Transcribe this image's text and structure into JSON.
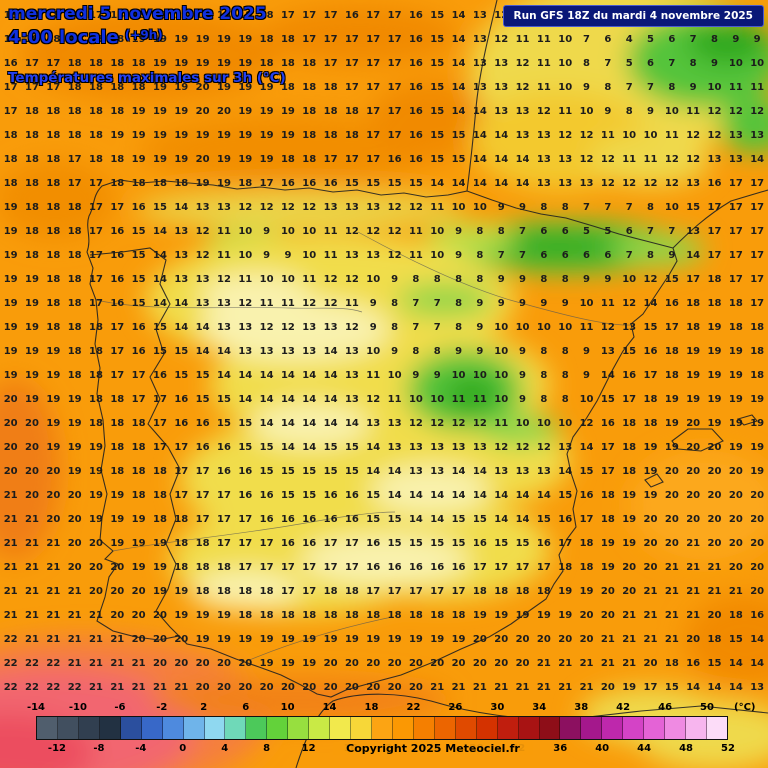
{
  "header": {
    "date_line": "mercredi 5 novembre 2025",
    "time_line": "4:00 locale",
    "time_offset": "(+9h)",
    "subtitle": "Températures maximales sur 3h (°C)",
    "run_info": "Run GFS 18Z du mardi 4 novembre 2025"
  },
  "footer": {
    "copyright": "Copyright 2025 Meteociel.fr"
  },
  "colors": {
    "header_blue": "#1030E0",
    "subtitle_blue": "#2440F0",
    "run_box_bg": "#0A1878",
    "run_box_text": "#FFFFFF",
    "number_color": "#1C1C1C",
    "map_base_orange": "#F99C0A"
  },
  "map": {
    "grid_rows": [
      "18 18 18 18 17 18 18 19 19 19 19 18 18 17 17 17 16 17 17 16 15 14 13 12 11 11 10 8 7 4 5 6 7 7 8 9",
      "18 18 18 18 18 18 19 19 19 19 19 19 18 18 17 17 17 17 17 16 15 14 13 12 11 11 10 7 6 4 5 6 7 8 9 9",
      "16 17 17 18 18 18 18 19 19 19 19 19 18 18 18 17 17 17 17 16 15 14 13 13 12 11 10 8 7 5 6 7 8 9 10 10",
      "17 17 17 18 18 18 18 19 19 20 19 19 19 18 18 18 17 17 17 16 15 14 13 13 12 11 10 9 8 7 7 8 9 10 11 11",
      "17 18 18 18 18 18 19 19 19 20 20 19 19 19 18 18 18 17 17 16 15 14 14 13 13 12 11 10 9 8 9 10 11 12 12 12",
      "18 18 18 18 18 19 19 19 19 19 19 19 19 19 18 18 18 17 17 16 15 15 14 14 13 13 12 12 11 10 10 11 12 12 13 13",
      "18 18 18 17 18 18 19 19 19 20 19 19 19 18 18 17 17 17 16 16 15 15 14 14 14 13 13 12 12 11 11 12 12 13 13 14",
      "18 18 18 17 17 18 18 18 18 19 19 18 17 16 16 16 15 15 15 15 14 14 14 14 14 13 13 13 12 12 12 12 13 16 17 17",
      "19 18 18 18 17 17 16 15 14 13 13 12 12 12 12 13 13 13 12 12 11 10 10 9 9 8 8 7 7 7 8 10 15 17 17 17",
      "19 18 18 18 17 16 15 14 13 12 11 10 9 10 10 11 12 12 12 11 10 9 8 8 7 6 6 5 5 6 7 7 13 17 17 17",
      "19 18 18 18 17 16 15 14 13 12 11 10 9 9 10 11 13 13 12 11 10 9 8 7 7 6 6 6 6 7 8 9 14 17 17 17",
      "19 19 18 18 17 16 15 14 13 13 12 11 10 10 11 12 12 10 9 8 8 8 8 9 9 8 8 9 9 10 12 15 17 18 17 17",
      "19 19 18 18 17 16 15 14 14 13 13 12 11 11 12 12 11 9 8 7 7 8 9 9 9 9 9 10 11 12 14 16 18 18 18 17",
      "19 19 18 18 18 17 16 15 14 14 13 13 12 12 13 13 12 9 8 7 7 8 9 10 10 10 10 11 12 13 15 17 18 19 18 18",
      "19 19 19 18 18 17 16 15 15 14 14 13 13 13 13 14 13 10 9 8 8 9 9 10 9 8 8 9 13 15 16 18 19 19 19 18",
      "19 19 19 18 18 17 17 16 15 15 14 14 14 14 14 14 13 11 10 9 9 10 10 10 9 8 8 9 14 16 17 18 19 19 19 18",
      "20 19 19 19 18 18 17 17 16 15 15 14 14 14 14 14 13 12 11 10 10 11 11 10 9 8 8 10 15 17 18 19 19 19 19 19",
      "20 20 19 19 18 18 18 17 16 16 15 15 14 14 14 14 14 13 13 12 12 12 12 11 10 10 10 12 16 18 18 19 20 19 19 19",
      "20 20 19 19 19 18 18 17 17 16 16 15 15 14 14 15 15 14 13 13 13 13 13 12 12 12 13 14 17 18 19 19 20 20 19 19",
      "20 20 20 19 19 18 18 18 17 17 16 16 15 15 15 15 15 14 14 13 13 14 14 13 13 13 14 15 17 18 19 20 20 20 20 19",
      "21 20 20 20 19 19 18 18 17 17 17 16 16 15 15 16 16 15 14 14 14 14 14 14 14 14 15 16 18 19 19 20 20 20 20 20",
      "21 21 20 20 19 19 19 18 18 17 17 17 16 16 16 16 16 15 15 14 14 15 15 14 14 15 16 17 18 19 20 20 20 20 20 20",
      "21 21 21 20 20 19 19 19 18 18 17 17 17 16 16 17 17 16 15 15 15 15 16 15 15 16 17 18 19 19 20 20 21 20 20 20",
      "21 21 21 20 20 20 19 19 18 18 18 17 17 17 17 17 17 16 16 16 16 16 17 17 17 17 18 18 19 20 20 21 21 21 20 20",
      "21 21 21 21 20 20 20 19 19 18 18 18 18 17 17 18 18 17 17 17 17 17 18 18 18 18 19 19 20 20 21 21 21 21 21 20",
      "21 21 21 21 21 20 20 20 19 19 19 18 18 18 18 18 18 18 18 18 18 18 19 19 19 19 19 20 20 21 21 21 21 20 18 16",
      "22 21 21 21 21 21 20 20 20 19 19 19 19 19 19 19 19 19 19 19 19 19 20 20 20 20 20 20 21 21 21 21 20 18 15 14",
      "22 22 22 21 21 21 21 20 20 20 20 20 19 19 19 20 20 20 20 20 20 20 20 20 20 21 21 21 21 21 20 18 16 15 14 14",
      "22 22 22 22 21 21 21 21 21 20 20 20 20 20 20 20 20 20 20 20 21 21 21 21 21 21 21 21 20 19 17 15 14 14 14 13"
    ]
  },
  "colorbar": {
    "min": -14,
    "max": 52,
    "unit": "(°C)",
    "top_labels": [
      -14,
      -10,
      -6,
      -2,
      2,
      6,
      10,
      14,
      18,
      22,
      26,
      30,
      34,
      38,
      42,
      46,
      50
    ],
    "bottom_labels": [
      -12,
      -8,
      -4,
      0,
      4,
      8,
      12,
      16,
      20,
      24,
      28,
      32,
      36,
      40,
      44,
      48,
      52
    ],
    "colors": [
      "#505E6D",
      "#414F5F",
      "#313F50",
      "#223142",
      "#2B4F9E",
      "#3868C8",
      "#4E8ADE",
      "#6FB4EA",
      "#8FD8F0",
      "#6FD9B8",
      "#4CC95A",
      "#63D23A",
      "#97DF3F",
      "#C9EA45",
      "#F2E94C",
      "#F7D738",
      "#FCA413",
      "#FB9803",
      "#F57F00",
      "#EC6500",
      "#E04A00",
      "#D43200",
      "#C01E0E",
      "#A81313",
      "#8E0E18",
      "#8C1060",
      "#A4188C",
      "#BE28AC",
      "#D443C6",
      "#E463D6",
      "#EF8AE2",
      "#F7B5EE",
      "#FCDCF8"
    ]
  }
}
